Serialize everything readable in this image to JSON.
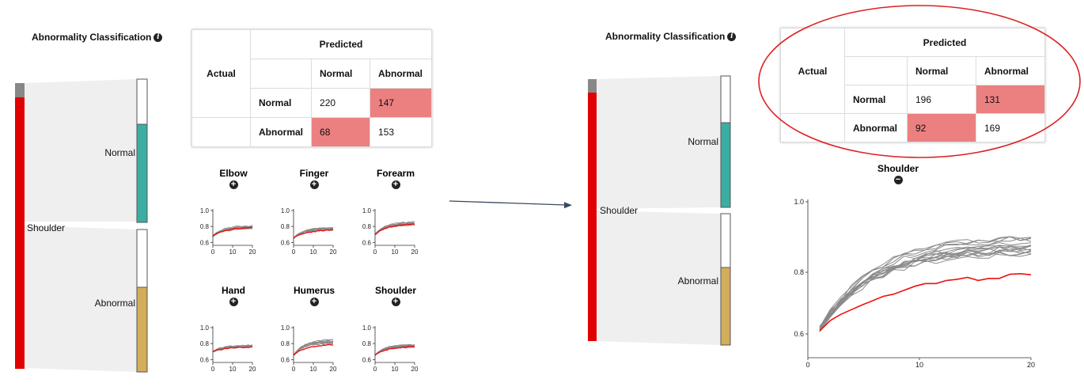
{
  "left_panel": {
    "title": "Abnormality Classification",
    "source_label": "Shoulder",
    "targets": [
      {
        "label": "Normal",
        "fill": 0.67,
        "color": "#3aaea3"
      },
      {
        "label": "Abnormal",
        "fill": 0.6,
        "color": "#d2ad5c"
      }
    ],
    "source_color": "#e00000"
  },
  "left_matrix": {
    "actual_label": "Actual",
    "predicted_label": "Predicted",
    "col_normal": "Normal",
    "col_abnormal": "Abnormal",
    "row_normal": "Normal",
    "row_abnormal": "Abnormal",
    "cells": {
      "nn": "220",
      "na": "147",
      "an": "68",
      "aa": "153"
    }
  },
  "small_multiples": [
    {
      "name": "Elbow",
      "ticks_y": [
        "1.0",
        "0.8",
        "0.6"
      ],
      "ticks_x": [
        "0",
        "10",
        "20"
      ]
    },
    {
      "name": "Finger",
      "ticks_y": [
        "1.0",
        "0.8",
        "0.6"
      ],
      "ticks_x": [
        "0",
        "10",
        "20"
      ]
    },
    {
      "name": "Forearm",
      "ticks_y": [
        "1.0",
        "0.8",
        "0.6"
      ],
      "ticks_x": [
        "0",
        "10",
        "20"
      ]
    },
    {
      "name": "Hand",
      "ticks_y": [
        "1.0",
        "0.8",
        "0.6"
      ],
      "ticks_x": [
        "0",
        "10",
        "20"
      ]
    },
    {
      "name": "Humerus",
      "ticks_y": [
        "1.0",
        "0.8",
        "0.6"
      ],
      "ticks_x": [
        "0",
        "10",
        "20"
      ]
    },
    {
      "name": "Shoulder",
      "ticks_y": [
        "1.0",
        "0.8",
        "0.6"
      ],
      "ticks_x": [
        "0",
        "10",
        "20"
      ]
    }
  ],
  "right_panel": {
    "title": "Abnormality Classification",
    "source_label": "Shoulder",
    "targets": [
      {
        "label": "Normal",
        "fill": 0.64
      },
      {
        "label": "Abnormal",
        "fill": 0.59
      }
    ]
  },
  "right_matrix": {
    "actual_label": "Actual",
    "predicted_label": "Predicted",
    "col_normal": "Normal",
    "col_abnormal": "Abnormal",
    "row_normal": "Normal",
    "row_abnormal": "Abnormal",
    "cells": {
      "nn": "196",
      "na": "131",
      "an": "92",
      "aa": "169"
    }
  },
  "detail_chart": {
    "title": "Shoulder",
    "ticks_y": [
      "1.0",
      "0.8",
      "0.6"
    ],
    "ticks_x": [
      "0",
      "10",
      "20"
    ]
  },
  "colors": {
    "highlight_ellipse": "#e02020",
    "error_cell": "#ec8080",
    "gray_line": "#8a8a8a",
    "red_line": "#ee1111"
  }
}
